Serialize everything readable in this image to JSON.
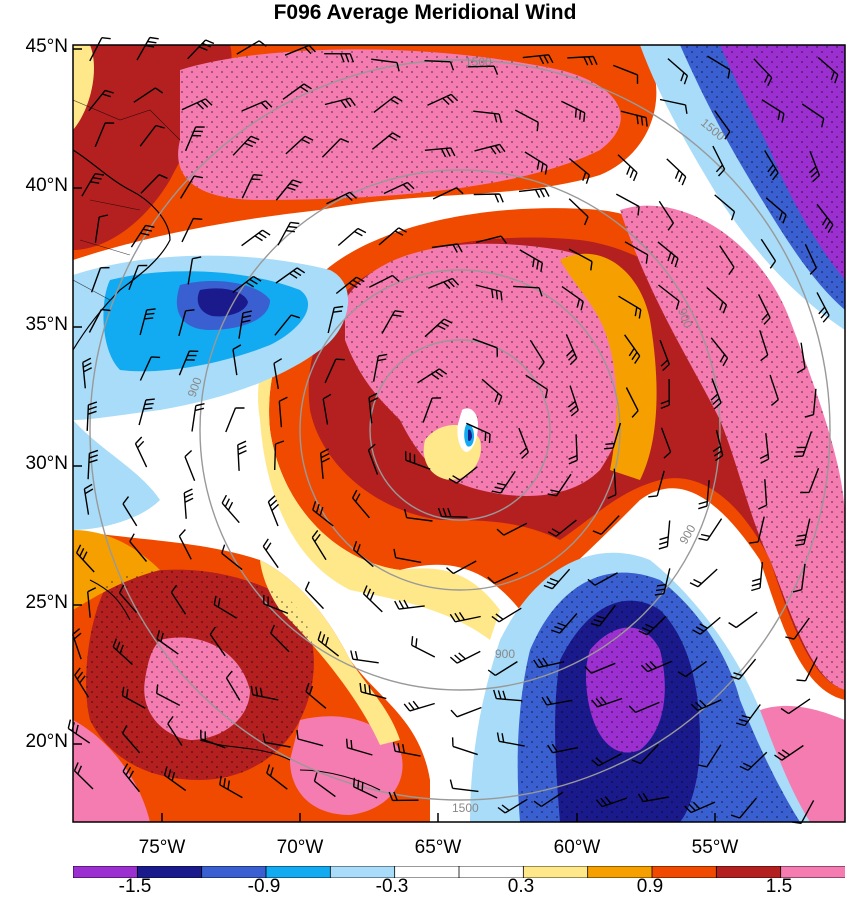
{
  "title": "F096 Average Meridional Wind",
  "lat_labels": [
    "45°N",
    "40°N",
    "35°N",
    "30°N",
    "25°N",
    "20°N"
  ],
  "lon_labels": [
    "75°W",
    "70°W",
    "65°W",
    "60°W",
    "55°W"
  ],
  "contour_labels": [
    "900",
    "900",
    "900",
    "900",
    "1500",
    "1500",
    "1500"
  ],
  "colorbar": {
    "colors": [
      "#9b2fd0",
      "#1a1a8c",
      "#3a5fd0",
      "#12aaf0",
      "#a8dcf8",
      "#ffffff",
      "#ffffff",
      "#ffe88a",
      "#f5a000",
      "#f04a00",
      "#b42020",
      "#f47cb0"
    ],
    "tick_labels": [
      "-1.5",
      "-0.9",
      "-0.3",
      "0.3",
      "0.9",
      "1.5"
    ]
  },
  "palette": {
    "background": "#ffffff",
    "pink": "#f47cb0",
    "darkred": "#b42020",
    "redorange": "#f04a00",
    "orange": "#f5a000",
    "yellow": "#ffe88a",
    "lightblue": "#a8dcf8",
    "blue": "#12aaf0",
    "medblue": "#3a5fd0",
    "navy": "#1a1a8c",
    "purple": "#9b2fd0",
    "contour": "#999999",
    "coast": "#000000"
  }
}
